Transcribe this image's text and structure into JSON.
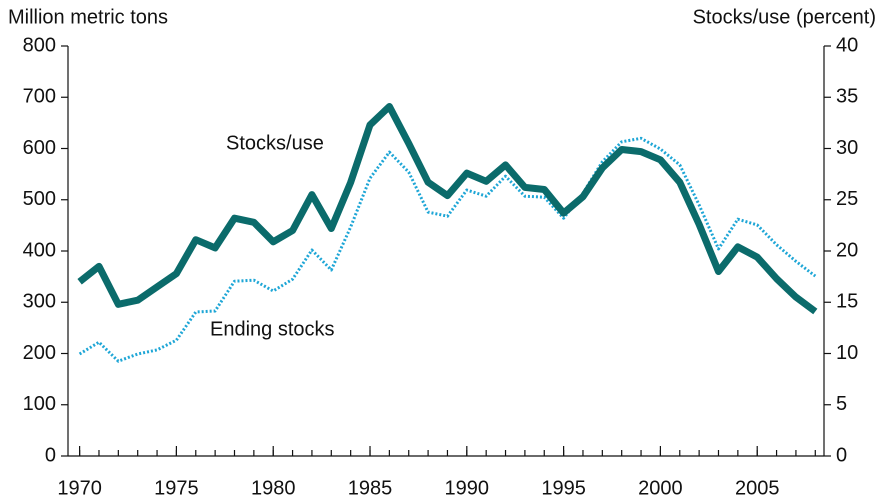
{
  "chart_data": {
    "type": "line",
    "y_label": "Million metric tons",
    "y2_label": "Stocks/use (percent)",
    "x": [
      1970,
      1971,
      1972,
      1973,
      1974,
      1975,
      1976,
      1977,
      1978,
      1979,
      1980,
      1981,
      1982,
      1983,
      1984,
      1985,
      1986,
      1987,
      1988,
      1989,
      1990,
      1991,
      1992,
      1993,
      1994,
      1995,
      1996,
      1997,
      1998,
      1999,
      2000,
      2001,
      2002,
      2003,
      2004,
      2005,
      2006,
      2007,
      2008
    ],
    "xlim": [
      1969.4,
      2008.45
    ],
    "xticks": [
      1970,
      1975,
      1980,
      1985,
      1990,
      1995,
      2000,
      2005
    ],
    "ylim": [
      0,
      800
    ],
    "yticks": [
      0,
      100,
      200,
      300,
      400,
      500,
      600,
      700,
      800
    ],
    "y2lim": [
      0,
      40
    ],
    "y2ticks": [
      0,
      5,
      10,
      15,
      20,
      25,
      30,
      35,
      40
    ],
    "series": [
      {
        "name": "Ending stocks",
        "color": "#1ea6d6",
        "style": "dotted",
        "axis": "y",
        "values": [
          199,
          222,
          185,
          199,
          207,
          226,
          281,
          283,
          341,
          343,
          322,
          345,
          402,
          363,
          447,
          542,
          593,
          554,
          476,
          468,
          519,
          507,
          546,
          507,
          505,
          464,
          513,
          574,
          613,
          620,
          599,
          568,
          490,
          404,
          462,
          451,
          412,
          380,
          351
        ]
      },
      {
        "name": "Stocks/use",
        "color": "#0b6b6b",
        "style": "solid",
        "axis": "y2",
        "values": [
          17.0,
          18.5,
          14.8,
          15.2,
          16.5,
          17.8,
          21.1,
          20.3,
          23.2,
          22.8,
          20.9,
          22.0,
          25.5,
          22.2,
          26.7,
          32.3,
          34.1,
          30.5,
          26.7,
          25.4,
          27.6,
          26.8,
          28.4,
          26.2,
          26.0,
          23.7,
          25.3,
          28.1,
          29.9,
          29.7,
          28.9,
          26.7,
          22.6,
          18.0,
          20.4,
          19.4,
          17.3,
          15.5,
          14.1
        ]
      }
    ]
  }
}
